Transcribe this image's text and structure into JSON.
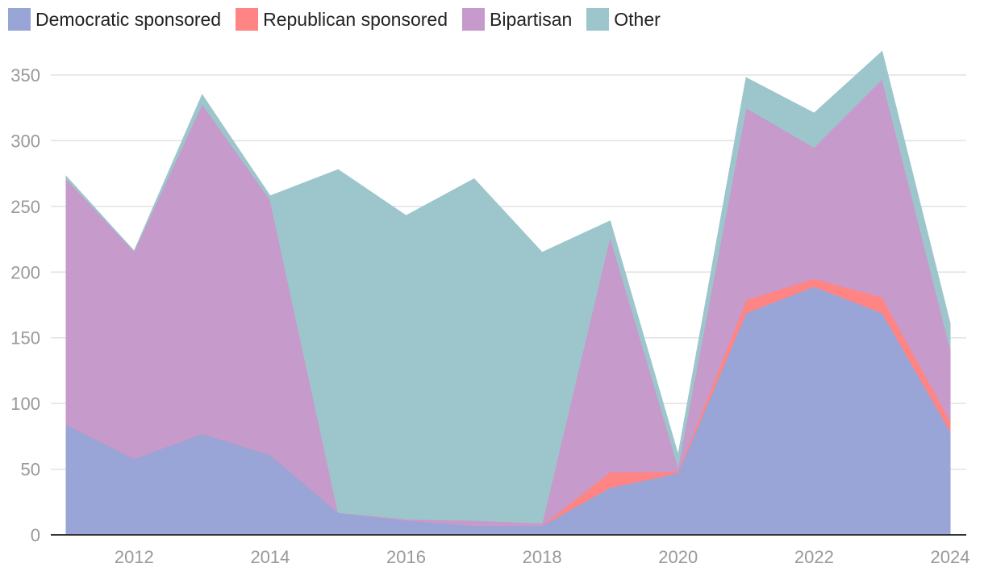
{
  "chart_data": {
    "type": "area",
    "stacked": true,
    "x": [
      2011,
      2012,
      2013,
      2014,
      2015,
      2016,
      2017,
      2018,
      2019,
      2020,
      2021,
      2022,
      2023,
      2024
    ],
    "series": [
      {
        "name": "Democratic sponsored",
        "color": "#98a5d6",
        "values": [
          84,
          58,
          77,
          61,
          17,
          11,
          7,
          7,
          36,
          47,
          169,
          189,
          169,
          79
        ]
      },
      {
        "name": "Republican sponsored",
        "color": "#ff8585",
        "values": [
          0,
          0,
          0,
          0,
          0,
          0,
          0,
          0,
          12,
          1,
          10,
          6,
          12,
          8
        ]
      },
      {
        "name": "Bipartisan",
        "color": "#c69aca",
        "values": [
          187,
          158,
          251,
          194,
          0,
          1,
          4,
          2,
          179,
          4,
          146,
          100,
          166,
          55
        ]
      },
      {
        "name": "Other",
        "color": "#9dc6cc",
        "values": [
          2,
          0,
          7,
          3,
          261,
          231,
          260,
          206,
          12,
          9,
          23,
          26,
          21,
          19
        ]
      }
    ],
    "xticks": [
      "2012",
      "2014",
      "2016",
      "2018",
      "2020",
      "2022",
      "2024"
    ],
    "yticks": [
      "0",
      "50",
      "100",
      "150",
      "200",
      "250",
      "300",
      "350"
    ],
    "ylim": [
      0,
      370
    ],
    "xlim": [
      2011,
      2024
    ],
    "grid": true,
    "legend_position": "top-left"
  }
}
